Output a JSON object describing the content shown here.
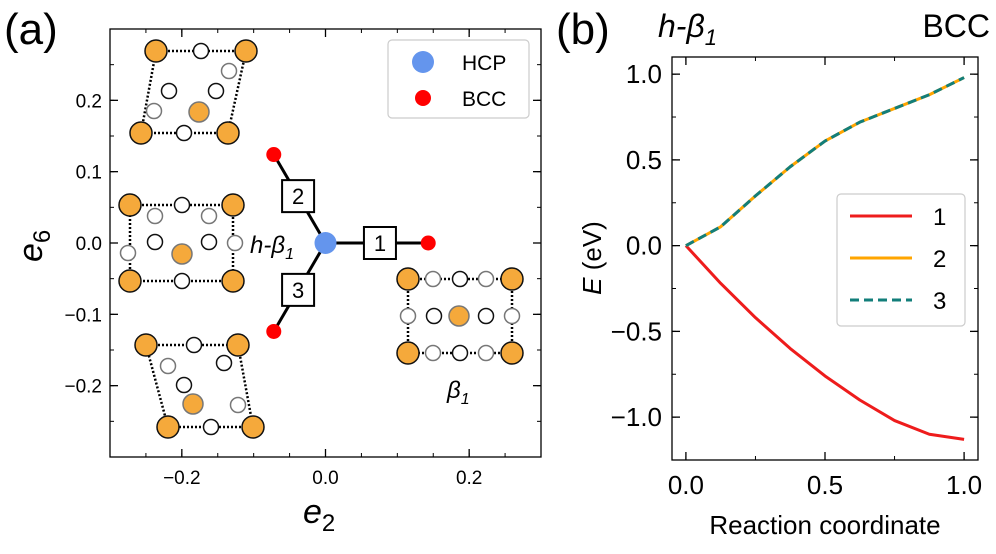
{
  "panels": {
    "a_label": "(a)",
    "b_label": "(b)"
  },
  "colors": {
    "hcp": "#6495ED",
    "bcc": "#FF0000",
    "atom_orange": "#F5A93B",
    "curve1": "#EE1C1C",
    "curve2": "#FFA500",
    "curve3": "#127E7A"
  },
  "chart_data": [
    {
      "panel": "a",
      "type": "scatter",
      "xlabel": "e",
      "xlabel_sub": "2",
      "ylabel": "e",
      "ylabel_sub": "6",
      "xlim": [
        -0.3,
        0.3
      ],
      "ylim": [
        -0.3,
        0.3
      ],
      "xticks": [
        -0.2,
        0.0,
        0.2
      ],
      "xtick_labels": [
        "−0.2",
        "0.0",
        "0.2"
      ],
      "yticks": [
        0.2,
        0.1,
        0.0,
        -0.1,
        -0.2
      ],
      "ytick_labels": [
        "0.2",
        "0.1",
        "0.0",
        "−0.1",
        "−0.2"
      ],
      "legend": [
        {
          "label": "HCP",
          "color": "#6495ED"
        },
        {
          "label": "BCC",
          "color": "#FF0000"
        }
      ],
      "legend_position": "top-right",
      "hcp_point": [
        0.0,
        0.0
      ],
      "bcc_points": [
        [
          0.143,
          0.0
        ],
        [
          -0.072,
          0.124
        ],
        [
          -0.072,
          -0.124
        ]
      ],
      "paths": [
        {
          "label": "1",
          "to": [
            0.143,
            0.0
          ]
        },
        {
          "label": "2",
          "to": [
            -0.072,
            0.124
          ]
        },
        {
          "label": "3",
          "to": [
            -0.072,
            -0.124
          ]
        }
      ],
      "center_label": {
        "main": "h-β",
        "sub": "1"
      },
      "beta_label": {
        "main": "β",
        "sub": "1"
      }
    },
    {
      "panel": "b",
      "type": "line",
      "title_left": {
        "main": "h-β",
        "sub": "1"
      },
      "title_right": "BCC",
      "xlabel": "Reaction coordinate",
      "ylabel_italic": "E",
      "ylabel_rest": " (eV)",
      "xlim": [
        -0.05,
        1.05
      ],
      "ylim": [
        -1.25,
        1.1
      ],
      "xticks": [
        0.0,
        0.5,
        1.0
      ],
      "xtick_labels": [
        "0.0",
        "0.5",
        "1.0"
      ],
      "yticks": [
        1.0,
        0.5,
        0.0,
        -0.5,
        -1.0
      ],
      "ytick_labels": [
        "1.0",
        "0.5",
        "0.0",
        "−0.5",
        "−1.0"
      ],
      "legend_position": "center-right",
      "x": [
        0.0,
        0.125,
        0.25,
        0.375,
        0.5,
        0.625,
        0.75,
        0.875,
        1.0
      ],
      "series": [
        {
          "name": "1",
          "values": [
            0.0,
            -0.22,
            -0.42,
            -0.6,
            -0.76,
            -0.9,
            -1.02,
            -1.1,
            -1.13
          ]
        },
        {
          "name": "2",
          "values": [
            0.0,
            0.11,
            0.29,
            0.46,
            0.61,
            0.72,
            0.8,
            0.88,
            0.98
          ]
        },
        {
          "name": "3",
          "values": [
            0.0,
            0.11,
            0.29,
            0.46,
            0.61,
            0.72,
            0.8,
            0.88,
            0.98
          ]
        }
      ]
    }
  ]
}
